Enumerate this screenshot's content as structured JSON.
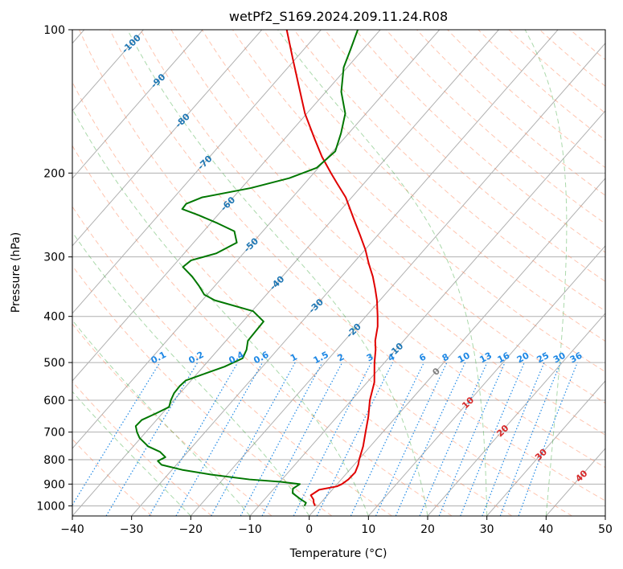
{
  "chart_data": {
    "type": "line",
    "subtype": "skew-t log-p diagram",
    "title": "wetPf2_S169.2024.209.11.24.R08",
    "xlabel": "Temperature (°C)",
    "ylabel": "Pressure (hPa)",
    "xlim": [
      -40,
      50
    ],
    "ylim": [
      1050,
      100
    ],
    "y_scale": "log",
    "x_ticks": [
      "−40",
      "−30",
      "−20",
      "−10",
      "0",
      "10",
      "20",
      "30",
      "40",
      "50"
    ],
    "y_ticks": [
      "100",
      "200",
      "300",
      "400",
      "500",
      "600",
      "700",
      "800",
      "900",
      "1000"
    ],
    "grid": true,
    "series": [
      {
        "color": "#e00000",
        "p": [
          1000,
          985,
          970,
          950,
          925,
          910,
          900,
          880,
          850,
          820,
          800,
          750,
          700,
          650,
          600,
          550,
          500,
          470,
          450,
          420,
          400,
          370,
          350,
          330,
          310,
          290,
          270,
          250,
          225,
          210,
          200,
          185,
          170,
          150,
          130,
          115,
          100
        ],
        "t": [
          -0.5,
          -1.2,
          -1.7,
          -2.8,
          -2.2,
          0.3,
          0.8,
          1.2,
          1.3,
          0.7,
          0.1,
          -1.2,
          -2.9,
          -4.7,
          -6.9,
          -8.8,
          -11.7,
          -13.4,
          -14.8,
          -16.5,
          -18.0,
          -20.5,
          -22.5,
          -24.7,
          -27.3,
          -29.9,
          -33.0,
          -36.4,
          -41.0,
          -44.6,
          -47.1,
          -51.0,
          -54.8,
          -60.3,
          -65.8,
          -70.5,
          -75.8
        ]
      },
      {
        "color": "#007700",
        "p": [
          1000,
          985,
          965,
          940,
          920,
          900,
          890,
          880,
          860,
          840,
          820,
          805,
          790,
          770,
          750,
          720,
          700,
          680,
          660,
          640,
          620,
          600,
          580,
          560,
          545,
          530,
          510,
          490,
          470,
          450,
          430,
          410,
          390,
          370,
          360,
          345,
          330,
          315,
          305,
          295,
          280,
          265,
          255,
          245,
          238,
          232,
          225,
          215,
          205,
          195,
          180,
          165,
          150,
          135,
          120,
          110,
          100
        ],
        "t": [
          -2.3,
          -2.5,
          -4.2,
          -6.2,
          -6.8,
          -6.3,
          -9.9,
          -15.5,
          -22.6,
          -28.3,
          -32.5,
          -33.7,
          -33.0,
          -34.7,
          -37.5,
          -40.2,
          -41.5,
          -42.6,
          -42.5,
          -41.1,
          -39.8,
          -40.5,
          -41.0,
          -41.1,
          -40.9,
          -39.0,
          -36.4,
          -34.6,
          -35.2,
          -36.3,
          -36.4,
          -36.5,
          -39.8,
          -47.9,
          -50.5,
          -52.7,
          -55.2,
          -58.2,
          -57.8,
          -54.6,
          -52.7,
          -54.8,
          -58.8,
          -63.3,
          -66.9,
          -67.0,
          -65.3,
          -58.4,
          -53.4,
          -50.3,
          -49.6,
          -51.3,
          -53.5,
          -57.4,
          -60.6,
          -62.1,
          -63.8
        ]
      }
    ],
    "dry_adiabats": {
      "color": "#ff7f50",
      "theta_c": [
        -30,
        -20,
        -10,
        0,
        10,
        20,
        30,
        40,
        50,
        60,
        70,
        80,
        90,
        100,
        110,
        120,
        130,
        140,
        150,
        160,
        170,
        180,
        190,
        200
      ]
    },
    "moist_adiabats": {
      "color": "#2ca02c",
      "start_t_c": [
        -20,
        -10,
        0,
        10,
        20,
        30,
        40
      ]
    },
    "mixing_ratio_lines": {
      "color": "#1e88e5",
      "labels": [
        "0.1",
        "0.2",
        "0.4",
        "0.6",
        "1",
        "1.5",
        "2",
        "3",
        "4",
        "6",
        "8",
        "10",
        "13",
        "16",
        "20",
        "25",
        "30",
        "36"
      ],
      "values": [
        0.1,
        0.2,
        0.4,
        0.6,
        1,
        1.5,
        2,
        3,
        4,
        6,
        8,
        10,
        13,
        16,
        20,
        25,
        30,
        36
      ]
    },
    "isotherm_labels": {
      "color": "#1f77b4",
      "labels": [
        "-100",
        "-90",
        "-80",
        "-70",
        "-60",
        "-50",
        "-40",
        "-30",
        "-20",
        "-10"
      ],
      "values": [
        -100,
        -90,
        -80,
        -70,
        -60,
        -50,
        -40,
        -30,
        -20,
        -10
      ],
      "pressures": [
        107,
        128,
        155,
        190,
        232,
        283,
        340,
        380,
        428,
        470
      ]
    },
    "warm_labels": {
      "color": "#d62728",
      "labels": [
        "10",
        "20",
        "30",
        "40"
      ],
      "values": [
        10,
        20,
        30,
        40
      ],
      "pressures": [
        607,
        695,
        780,
        865
      ]
    },
    "zero_label": {
      "label": "0",
      "color": "#808080",
      "value": 0,
      "pressure": 522
    }
  }
}
